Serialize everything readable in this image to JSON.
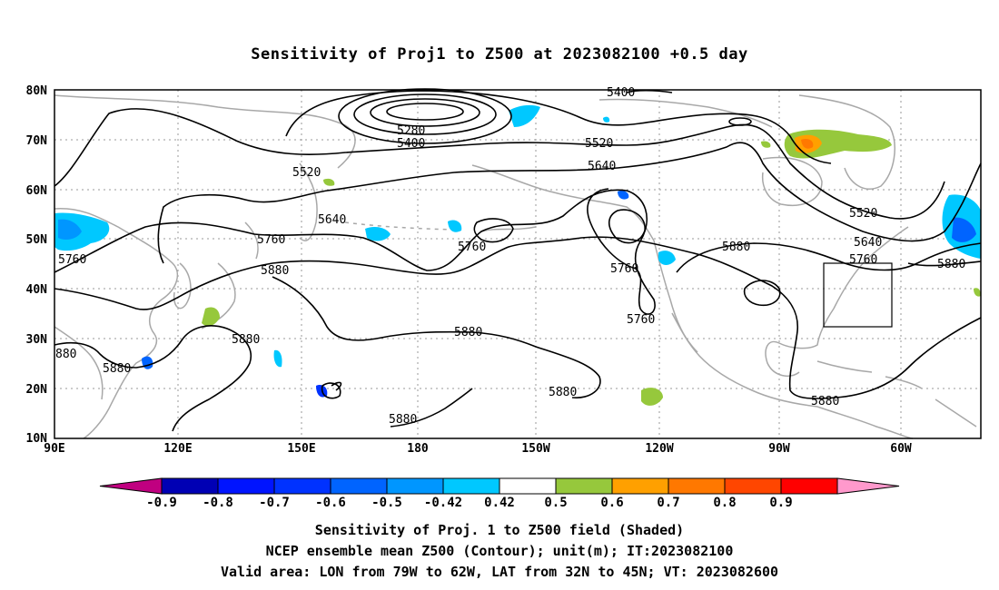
{
  "title": "Sensitivity of Proj1 to Z500 at 2023082100 +0.5 day",
  "axes": {
    "y_ticks": [
      "80N",
      "70N",
      "60N",
      "50N",
      "40N",
      "30N",
      "20N",
      "10N"
    ],
    "x_ticks": [
      "90E",
      "120E",
      "150E",
      "180",
      "150W",
      "120W",
      "90W",
      "60W"
    ]
  },
  "contour_labels": [
    "5400",
    "5280",
    "5400",
    "5520",
    "5520",
    "5640",
    "5640",
    "5760",
    "5760",
    "5880",
    "5880",
    "5880",
    "5520",
    "5640",
    "5760",
    "5880",
    "5760",
    "5760",
    "5880",
    "5880",
    "5880",
    "5880",
    "5760",
    "5880",
    "880",
    "5880",
    "5880"
  ],
  "colorbar": {
    "colors": [
      "#c00080",
      "#0000b4",
      "#0014ff",
      "#0032ff",
      "#0064ff",
      "#0096ff",
      "#00c8ff",
      "#ffffff",
      "#96c83c",
      "#ffa000",
      "#ff7800",
      "#ff4600",
      "#ff0000",
      "#ff99cc"
    ],
    "tick_labels": [
      "-0.9",
      "-0.8",
      "-0.7",
      "-0.6",
      "-0.5",
      "-0.42",
      "0.42",
      "0.5",
      "0.6",
      "0.7",
      "0.8",
      "0.9"
    ]
  },
  "footer": {
    "line1": "Sensitivity of Proj. 1 to Z500 field (Shaded)",
    "line2": "NCEP ensemble mean Z500 (Contour); unit(m); IT:2023082100",
    "line3": "Valid area: LON from 79W to 62W, LAT from 32N to 45N; VT: 2023082600"
  }
}
